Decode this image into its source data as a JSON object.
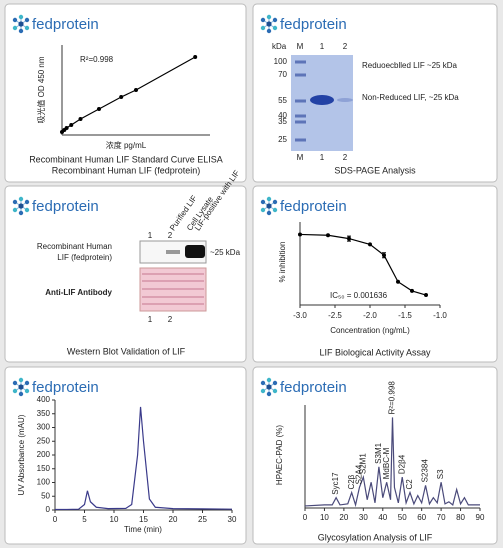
{
  "brand": "fedprotein",
  "sds_page": {
    "title": "SDS-PAGE Analysis",
    "unit": "kDa",
    "lanes_top": [
      "M",
      "1",
      "2"
    ],
    "lanes_bottom": [
      "M",
      "1",
      "2"
    ],
    "ladder": [
      100,
      70,
      55,
      40,
      35,
      25
    ],
    "labels": [
      "Reduoecblled LIF ~25 kDa",
      "Non-Reduced LIF, ~25 kDa"
    ]
  },
  "western_blot": {
    "title": "Western Blot Validation of LIF",
    "lanes": [
      "1",
      "2"
    ],
    "lane_headers": [
      "Purified LIF",
      "Cell Lysate",
      "LIF-positive with LIF"
    ],
    "protein": [
      "Recombinant Human",
      "LIF (fedprotein)"
    ],
    "band": "~25 kDa",
    "loading": "Anti-LIF Antibody",
    "lanes_bottom": [
      "1",
      "2"
    ]
  },
  "chart_data": [
    {
      "type": "scatter",
      "title": "Recombinant Human LIF Standard Curve ELISA",
      "subtitle": "Recombinant Human LIF (fedprotein)",
      "y_label": "吸光值 OD 450 nm",
      "x_label": "浓度 pg/mL",
      "annotation": "R²=0.998",
      "x": [
        0,
        15.6,
        31.25,
        62.5,
        125,
        250,
        400,
        500,
        900
      ],
      "values": [
        0.03,
        0.05,
        0.07,
        0.1,
        0.16,
        0.26,
        0.38,
        0.45,
        0.78
      ],
      "xlim": [
        0,
        1000
      ],
      "ylim": [
        0,
        0.9
      ],
      "color": "#000000",
      "trendline": true
    },
    {
      "type": "line",
      "title": "LIF Biological Activity Assay",
      "y_label": "% inhibition",
      "x_label": "Concentration (ng/mL)",
      "annotation": "IC₅₀ = 0.001636",
      "x": [
        -3,
        -2.6,
        -2.3,
        -2.0,
        -1.8,
        -1.6,
        -1.4,
        -1.2
      ],
      "values": [
        85,
        84,
        80,
        73,
        60,
        28,
        17,
        12
      ],
      "errors": [
        null,
        null,
        3,
        null,
        3,
        null,
        null,
        null
      ],
      "markers": true,
      "xlim": [
        -3,
        -1
      ],
      "xticks": [
        {
          "value": -3,
          "label": "-3.0"
        },
        {
          "value": -2.5,
          "label": "-2.5"
        },
        {
          "value": -2,
          "label": "-2.0"
        },
        {
          "value": -1.5,
          "label": "-1.5"
        },
        {
          "value": -1,
          "label": "-1.0"
        }
      ],
      "ylim": [
        0,
        100
      ],
      "color": "#000000"
    },
    {
      "type": "line",
      "y_label": "UV Absorbance (mAU)",
      "x_label": "Time (min)",
      "x": [
        0,
        2,
        4,
        5,
        5.5,
        6,
        7,
        9,
        12,
        13,
        14,
        14.5,
        15,
        16,
        17,
        20,
        25,
        30
      ],
      "values": [
        2,
        2,
        3,
        20,
        70,
        30,
        10,
        5,
        6,
        20,
        200,
        375,
        250,
        40,
        10,
        5,
        4,
        3
      ],
      "xlim": [
        0,
        30
      ],
      "xticks": [
        0,
        5,
        10,
        15,
        20,
        25,
        30
      ],
      "ylim": [
        0,
        400
      ],
      "yticks": [
        0,
        50,
        100,
        150,
        200,
        250,
        300,
        350,
        400
      ],
      "color": "#3a3a8a"
    },
    {
      "type": "line",
      "title": "Glycosylation Analysis of LIF",
      "y_label": "HPAEC-PAD (%)",
      "x": [
        0,
        10,
        14,
        16,
        18,
        22,
        24,
        26,
        28,
        30,
        32,
        34,
        36,
        38,
        40,
        42,
        44,
        45,
        46,
        48,
        50,
        52,
        54,
        56,
        58,
        60,
        62,
        64,
        66,
        68,
        70,
        72,
        74,
        76,
        78,
        80,
        82,
        84,
        86,
        90
      ],
      "values": [
        2,
        3,
        3,
        10,
        3,
        4,
        15,
        3,
        20,
        30,
        8,
        25,
        5,
        40,
        10,
        25,
        8,
        88,
        20,
        5,
        30,
        5,
        15,
        4,
        12,
        5,
        22,
        4,
        10,
        5,
        25,
        4,
        6,
        3,
        18,
        4,
        10,
        3,
        3,
        3
      ],
      "xlim": [
        0,
        90
      ],
      "xticks": [
        0,
        10,
        20,
        30,
        40,
        50,
        60,
        70,
        80,
        90
      ],
      "ylim": [
        0,
        100
      ],
      "color": "#4a4a7a",
      "peak_labels": [
        {
          "label": "Syc17",
          "x": 16,
          "y": 10
        },
        {
          "label": "C2β",
          "x": 24,
          "y": 15
        },
        {
          "label": "S2A4",
          "x": 28,
          "y": 20
        },
        {
          "label": "S2M1",
          "x": 30,
          "y": 30
        },
        {
          "label": "S3M1",
          "x": 38,
          "y": 40
        },
        {
          "label": "MdBC-M",
          "x": 42,
          "y": 25
        },
        {
          "label": "R²=0.998",
          "x": 45,
          "y": 88
        },
        {
          "label": "D2β4",
          "x": 50,
          "y": 30
        },
        {
          "label": "C2",
          "x": 54,
          "y": 15
        },
        {
          "label": "S2384",
          "x": 62,
          "y": 22
        },
        {
          "label": "S3",
          "x": 70,
          "y": 25
        }
      ]
    }
  ]
}
